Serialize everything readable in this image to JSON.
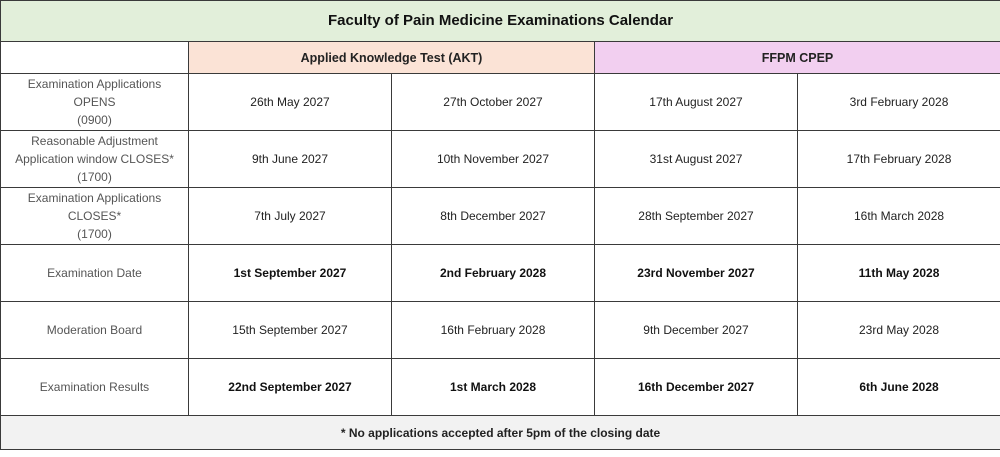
{
  "title": "Faculty of Pain Medicine Examinations Calendar",
  "groups": {
    "akt": "Applied Knowledge Test (AKT)",
    "cpep": "FFPM CPEP"
  },
  "colors": {
    "title_bg": "#e2efda",
    "akt_bg": "#fbe3d6",
    "cpep_bg": "#f2cff0",
    "footer_bg": "#f2f2f2"
  },
  "rows": [
    {
      "label": [
        "Examination Applications",
        "OPENS",
        "(0900)"
      ],
      "bold": false,
      "values": [
        "26th May 2027",
        "27th October 2027",
        "17th August 2027",
        "3rd February 2028"
      ]
    },
    {
      "label": [
        "Reasonable Adjustment",
        "Application window CLOSES*",
        "(1700)"
      ],
      "bold": false,
      "values": [
        "9th June 2027",
        "10th November 2027",
        "31st August 2027",
        "17th February 2028"
      ]
    },
    {
      "label": [
        "Examination Applications",
        "CLOSES*",
        "(1700)"
      ],
      "bold": false,
      "values": [
        "7th July 2027",
        "8th December 2027",
        "28th September 2027",
        "16th March 2028"
      ]
    },
    {
      "label": [
        "Examination Date"
      ],
      "bold": true,
      "values": [
        "1st September 2027",
        "2nd February 2028",
        "23rd November 2027",
        "11th May 2028"
      ]
    },
    {
      "label": [
        "Moderation Board"
      ],
      "bold": false,
      "values": [
        "15th September 2027",
        "16th February 2028",
        "9th December 2027",
        "23rd May 2028"
      ]
    },
    {
      "label": [
        "Examination Results"
      ],
      "bold": true,
      "values": [
        "22nd September 2027",
        "1st March 2028",
        "16th December 2027",
        "6th June 2028"
      ]
    }
  ],
  "footer": "* No applications accepted after 5pm of the closing date"
}
